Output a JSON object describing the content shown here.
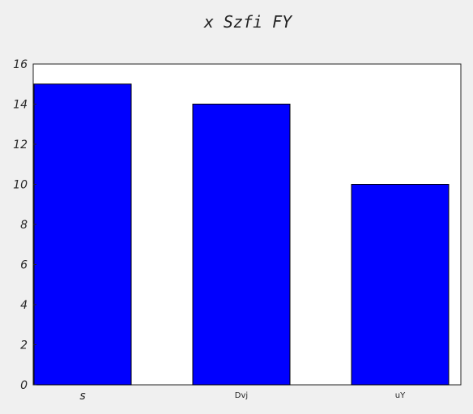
{
  "chart_data": {
    "type": "bar",
    "title": "x Szfi FY",
    "xlabel": "",
    "ylabel": "",
    "categories": [
      "s",
      "Dvj",
      "uY"
    ],
    "values": [
      15,
      14,
      10
    ],
    "ylim": [
      0,
      16
    ],
    "yticks": [
      "0",
      "2",
      "4",
      "6",
      "8",
      "10",
      "12",
      "14",
      "16"
    ],
    "grid": false,
    "bar_color": "#0000ff",
    "bar_edge_color": "#000000",
    "plot_background": "#ffffff",
    "figure_background": "#f0f0f0"
  }
}
